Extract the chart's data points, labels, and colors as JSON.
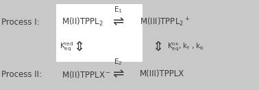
{
  "bg_color": "#c8c8c8",
  "white_box_color": "#ffffff",
  "text_color": "#3a3a3a",
  "fig_width": 3.78,
  "fig_height": 1.31,
  "dpi": 100,
  "process_I_label": "Process I:",
  "process_II_label": "Process II:",
  "row1_left": "M(II)TPPL$_2$",
  "row1_right": "M(III)TPPL$_2$$^+$",
  "row1_e_label": "E$_1$",
  "row2_left_label": "K$_{\\rm eq}^{\\rm red}$",
  "row2_right_label": "K$_{\\rm eq}^{\\rm ox}$, k$_{\\rm f}$ , k$_{\\rm b}$",
  "row3_left": "M(II)TPPLX$^-$",
  "row3_right": "M(III)TPPLX",
  "row3_e_label": "E$_2$",
  "equil_arrow": "⇌",
  "vert_arrow": "⇕"
}
